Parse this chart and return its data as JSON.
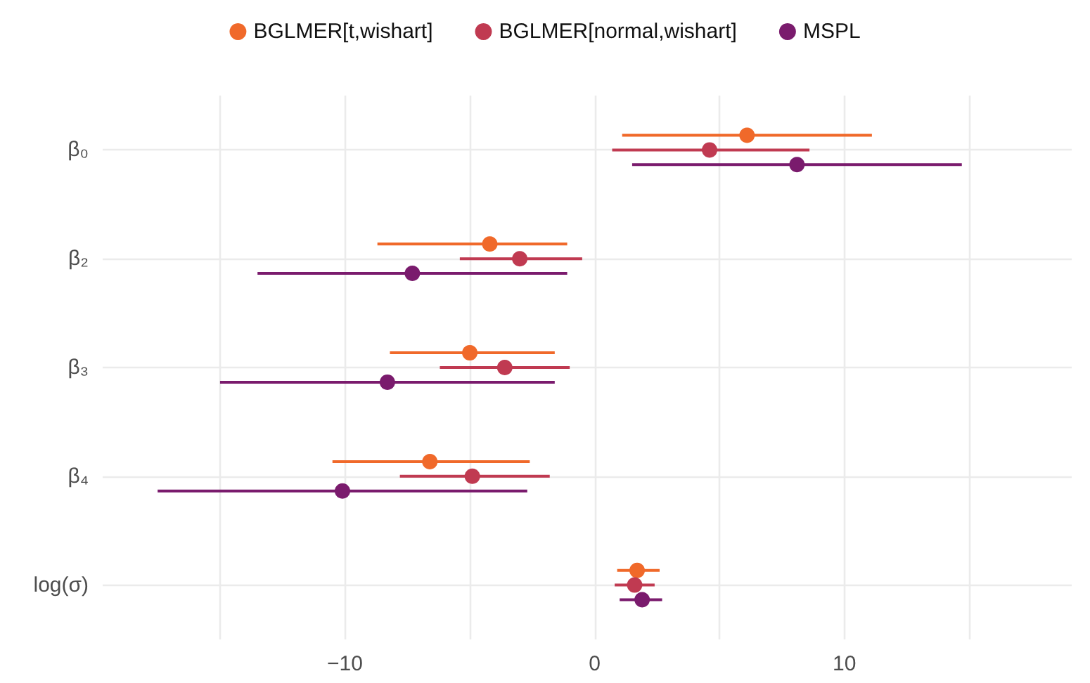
{
  "chart_data": {
    "type": "scatter",
    "orientation": "horizontal",
    "categories": [
      "β₀",
      "β₂",
      "β₃",
      "β₄",
      "log(σ)"
    ],
    "series": [
      {
        "name": "BGLMER[t,wishart]",
        "color": "#f0692a",
        "values": [
          6.1,
          -4.2,
          -5.0,
          -6.6,
          1.7
        ],
        "errors": [
          [
            1.1,
            11.1
          ],
          [
            -8.7,
            -1.1
          ],
          [
            -8.2,
            -1.6
          ],
          [
            -10.5,
            -2.6
          ],
          [
            0.9,
            2.6
          ]
        ]
      },
      {
        "name": "BGLMER[normal,wishart]",
        "color": "#c03a51",
        "values": [
          4.6,
          -3.0,
          -3.6,
          -4.9,
          1.6
        ],
        "errors": [
          [
            0.7,
            8.6
          ],
          [
            -5.4,
            -0.5
          ],
          [
            -6.2,
            -1.0
          ],
          [
            -7.8,
            -1.8
          ],
          [
            0.8,
            2.4
          ]
        ]
      },
      {
        "name": "MSPL",
        "color": "#7a1b6d",
        "values": [
          8.1,
          -7.3,
          -8.3,
          -10.1,
          1.9
        ],
        "errors": [
          [
            1.5,
            14.7
          ],
          [
            -13.5,
            -1.1
          ],
          [
            -15.0,
            -1.6
          ],
          [
            -17.5,
            -2.7
          ],
          [
            1.0,
            2.7
          ]
        ]
      }
    ],
    "xlim": [
      -19.7,
      19.1
    ],
    "xticks": [
      {
        "value": -15,
        "label": null
      },
      -10,
      {
        "value": -5,
        "label": null
      },
      0,
      {
        "value": 5,
        "label": null
      },
      10,
      {
        "value": 15,
        "label": null
      }
    ],
    "grid": true,
    "legend": "top",
    "marker": "circle"
  }
}
